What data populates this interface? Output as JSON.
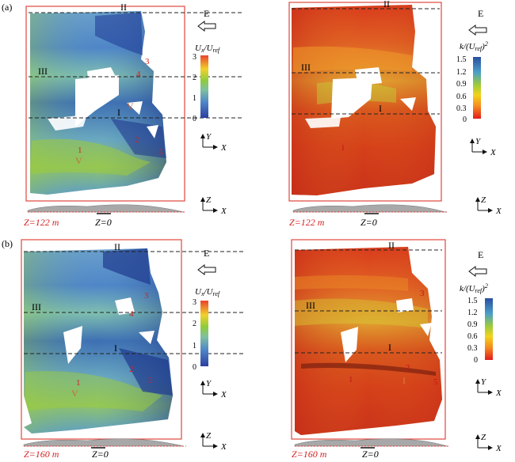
{
  "panels": [
    {
      "label": "(a)",
      "z_caption": "Z=122 m",
      "z0": "Z=0",
      "left": {
        "lines": [
          "II",
          "III",
          "I"
        ],
        "numbers": [
          "1",
          "2",
          "3",
          "4",
          "5"
        ],
        "markers": [
          "V",
          "V"
        ],
        "east": "E",
        "cb_title_html": "U_x/U_ref",
        "cb_ticks": [
          "3",
          "2",
          "1",
          "0"
        ],
        "axes": {
          "v": "Y",
          "h": "X"
        },
        "side_axes": {
          "v": "Z",
          "h": "X"
        }
      },
      "right": {
        "lines": [
          "II",
          "III",
          "I"
        ],
        "numbers": [
          "1"
        ],
        "east": "E",
        "cb_ticks": [
          "1.5",
          "1.2",
          "0.9",
          "0.6",
          "0.3",
          "0"
        ],
        "axes": {
          "v": "Y",
          "h": "X"
        },
        "side_axes": {
          "v": "Z",
          "h": "X"
        }
      }
    },
    {
      "label": "(b)",
      "z_caption": "Z=160 m",
      "z0": "Z=0",
      "left": {
        "lines": [
          "II",
          "III",
          "I"
        ],
        "numbers": [
          "1",
          "2",
          "3",
          "4",
          "5"
        ],
        "markers": [
          "V"
        ],
        "east": "E",
        "cb_ticks": [
          "3",
          "2",
          "1",
          "0"
        ],
        "axes": {
          "v": "Y",
          "h": "X"
        },
        "side_axes": {
          "v": "Z",
          "h": "X"
        }
      },
      "right": {
        "lines": [
          "II",
          "III",
          "I"
        ],
        "numbers": [
          "1",
          "2",
          "3",
          "5"
        ],
        "markers": [
          "I"
        ],
        "east": "E",
        "cb_ticks": [
          "1.5",
          "1.2",
          "0.9",
          "0.6",
          "0.3",
          "0"
        ],
        "axes": {
          "v": "Y",
          "h": "X"
        },
        "side_axes": {
          "v": "Z",
          "h": "X"
        }
      }
    }
  ],
  "colors": {
    "frame": "#e0463c",
    "ux_stops": [
      "#2c3f9e",
      "#4f86c8",
      "#7fc0a0",
      "#8fcc3c",
      "#f2d12a",
      "#e8432c"
    ],
    "k_stops": [
      "#e21b1b",
      "#f58a1e",
      "#f3d31a",
      "#9ccb3c",
      "#4aa0c8",
      "#2a4ea0"
    ],
    "field_left": "#5b96c6",
    "field_right": "#d8421e"
  }
}
